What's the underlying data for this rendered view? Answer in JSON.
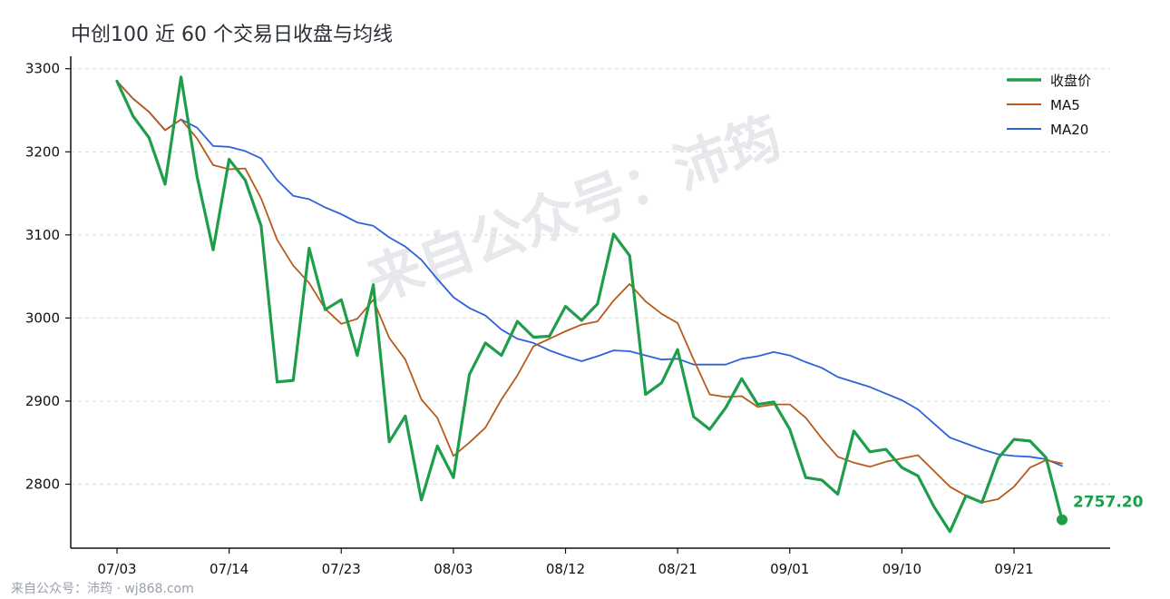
{
  "chart_data": {
    "type": "line",
    "title": "中创100 近 60 个交易日收盘与均线",
    "xlabel": "",
    "ylabel": "",
    "ylim": [
      2723,
      3315
    ],
    "yticks": [
      2800,
      2900,
      3000,
      3100,
      3200,
      3300
    ],
    "x_tick_labels": [
      "07/03",
      "07/14",
      "07/23",
      "08/03",
      "08/12",
      "08/21",
      "09/01",
      "09/10",
      "09/21"
    ],
    "x_tick_indices": [
      0,
      7,
      14,
      21,
      28,
      35,
      42,
      49,
      56
    ],
    "grid": "horizontal dashed",
    "legend_position": "top-right",
    "series": [
      {
        "name": "收盘价",
        "color": "#1e9e4a",
        "values": [
          3285,
          3243,
          3217,
          3161,
          3290,
          3170,
          3082,
          3191,
          3166,
          3111,
          2923,
          2925,
          3084,
          3010,
          3022,
          2955,
          3040,
          2851,
          2882,
          2781,
          2846,
          2808,
          2932,
          2970,
          2955,
          2996,
          2977,
          2978,
          3014,
          2997,
          3017,
          3101,
          3075,
          2908,
          2922,
          2962,
          2881,
          2866,
          2892,
          2927,
          2896,
          2899,
          2866,
          2808,
          2805,
          2788,
          2864,
          2839,
          2842,
          2820,
          2810,
          2773,
          2743,
          2786,
          2778,
          2831,
          2854,
          2852,
          2832,
          2757.2
        ]
      },
      {
        "name": "MA5",
        "color": "#b85a1a",
        "values": [
          3285,
          3264,
          3248,
          3226,
          3239,
          3216,
          3184,
          3179,
          3180,
          3144,
          3094,
          3063,
          3042,
          3011,
          2993,
          2999,
          3022,
          2976,
          2950,
          2902,
          2880,
          2834,
          2850,
          2868,
          2902,
          2931,
          2966,
          2975,
          2984,
          2992,
          2996,
          3021,
          3041,
          3020,
          3005,
          2994,
          2950,
          2908,
          2905,
          2906,
          2893,
          2896,
          2896,
          2880,
          2855,
          2833,
          2826,
          2821,
          2827,
          2831,
          2835,
          2816,
          2797,
          2786,
          2778,
          2782,
          2797,
          2820,
          2829,
          2825
        ]
      },
      {
        "name": "MA20",
        "color": "#2f62d8",
        "values": [
          3285,
          3264,
          3248,
          3226,
          3239,
          3229,
          3207,
          3206,
          3201,
          3192,
          3166,
          3147,
          3143,
          3133,
          3125,
          3115,
          3111,
          3097,
          3086,
          3070,
          3047,
          3025,
          3012,
          3003,
          2986,
          2975,
          2970,
          2961,
          2954,
          2948,
          2954,
          2961,
          2960,
          2955,
          2950,
          2951,
          2944,
          2944,
          2944,
          2951,
          2954,
          2959,
          2955,
          2947,
          2940,
          2929,
          2923,
          2917,
          2909,
          2901,
          2890,
          2873,
          2856,
          2849,
          2842,
          2836,
          2834,
          2833,
          2830,
          2822
        ]
      }
    ],
    "end_label": "2757.20"
  },
  "watermark": "来自公众号：沛筠",
  "footer": "来自公众号：沛筠 · wj868.com"
}
